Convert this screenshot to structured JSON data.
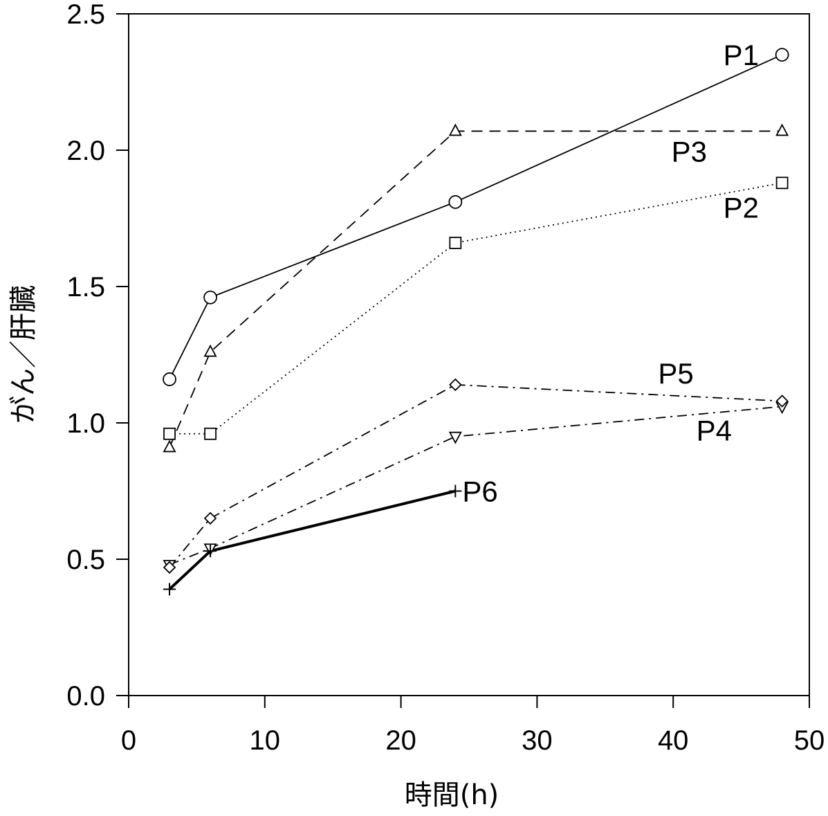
{
  "chart_data": {
    "type": "line",
    "xlabel": "時間(h)",
    "ylabel": "がん／肝臓",
    "xlim": [
      0,
      50
    ],
    "ylim": [
      0,
      2.5
    ],
    "xticks": [
      "0",
      "10",
      "20",
      "30",
      "40",
      "50"
    ],
    "yticks": [
      "0.0",
      "0.5",
      "1.0",
      "1.5",
      "2.0",
      "2.5"
    ],
    "grid": false,
    "legend": "inline labels",
    "series": [
      {
        "name": "P1",
        "marker": "circle",
        "line": "solid",
        "x": [
          3,
          6,
          24,
          48
        ],
        "y": [
          1.16,
          1.46,
          1.81,
          2.35
        ]
      },
      {
        "name": "P2",
        "marker": "square",
        "line": "dotted",
        "x": [
          3,
          6,
          24,
          48
        ],
        "y": [
          0.96,
          0.96,
          1.66,
          1.88
        ]
      },
      {
        "name": "P3",
        "marker": "triangle-up",
        "line": "dashed",
        "x": [
          3,
          6,
          24,
          48
        ],
        "y": [
          0.91,
          1.26,
          2.07,
          2.07
        ]
      },
      {
        "name": "P4",
        "marker": "triangle-down",
        "line": "dashdot",
        "x": [
          3,
          6,
          24,
          48
        ],
        "y": [
          0.48,
          0.54,
          0.95,
          1.06
        ]
      },
      {
        "name": "P5",
        "marker": "diamond",
        "line": "dashdot",
        "x": [
          3,
          6,
          24,
          48
        ],
        "y": [
          0.47,
          0.65,
          1.14,
          1.08
        ]
      },
      {
        "name": "P6",
        "marker": "plus",
        "line": "bold",
        "x": [
          3,
          6,
          24
        ],
        "y": [
          0.39,
          0.53,
          0.75
        ]
      }
    ]
  }
}
